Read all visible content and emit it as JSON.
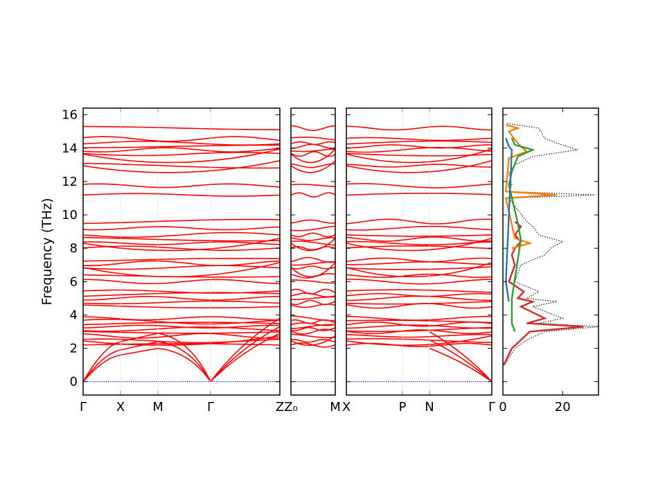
{
  "chart_data": [
    {
      "type": "line",
      "panel": "band-structure-1",
      "ylabel": "Frequency (THz)",
      "ylim": [
        -0.8,
        16.4
      ],
      "yticks": [
        "0",
        "2",
        "4",
        "6",
        "8",
        "10",
        "12",
        "14",
        "16"
      ],
      "xticks": [
        "Γ",
        "X",
        "M",
        "Γ",
        "Z"
      ],
      "series_color": "#ff0000",
      "zero_line_color": "#0000cc",
      "flat_bands": [
        2.2,
        2.45,
        2.75,
        3.0,
        3.15,
        3.3,
        3.45,
        3.6,
        3.8,
        4.55,
        4.75,
        5.0,
        5.2,
        5.4,
        6.0,
        6.35,
        6.85,
        7.1,
        7.3,
        8.0,
        8.3,
        8.55,
        8.8,
        9.2,
        9.6,
        11.2,
        11.75,
        12.95,
        13.65,
        13.9,
        14.1,
        14.3,
        14.55,
        15.2
      ],
      "acoustic": [
        {
          "name": "",
          "x": [
            "Γ",
            "X",
            "M",
            "Γ"
          ],
          "y": [
            0,
            1.9,
            2.4,
            0
          ]
        },
        {
          "name": "",
          "x": [
            "Γ",
            "X",
            "M",
            "Γ"
          ],
          "y": [
            0,
            1.6,
            2.0,
            0
          ]
        },
        {
          "name": "",
          "x": [
            "Γ",
            "X",
            "M",
            "Γ"
          ],
          "y": [
            0,
            2.4,
            2.9,
            0
          ]
        }
      ]
    },
    {
      "type": "line",
      "panel": "band-structure-2",
      "xticks": [
        "Z₀",
        "M"
      ],
      "series_color": "#ff0000"
    },
    {
      "type": "line",
      "panel": "band-structure-3",
      "xticks": [
        "X",
        "P",
        "N",
        "Γ"
      ],
      "series_color": "#ff0000"
    },
    {
      "type": "line",
      "panel": "dos",
      "xticks": [
        "0",
        "20"
      ],
      "xlim": [
        0,
        32
      ],
      "series": [
        {
          "name": "",
          "color": "#000000",
          "style": "dotted",
          "y": [
            1.0,
            2.0,
            2.5,
            3.0,
            3.3,
            3.5,
            3.8,
            4.5,
            4.8,
            5.0,
            5.4,
            6.0,
            7.0,
            7.6,
            8.0,
            8.4,
            8.8,
            9.3,
            9.6,
            11.0,
            11.2,
            11.4,
            11.8,
            12.5,
            13.0,
            13.5,
            13.9,
            14.3,
            14.6,
            15.2,
            15.5
          ],
          "x": [
            0.5,
            4,
            8,
            14,
            32,
            12,
            20,
            10,
            18,
            8,
            12,
            4,
            6,
            14,
            16,
            20,
            12,
            10,
            8,
            2,
            31,
            2,
            3,
            2,
            4,
            10,
            25,
            18,
            14,
            12,
            1
          ]
        },
        {
          "name": "",
          "color": "#d62728",
          "y": [
            1.0,
            2.0,
            2.5,
            3.0,
            3.3,
            3.5,
            3.8,
            4.5,
            4.8,
            5.0,
            5.4,
            6.0,
            7.0,
            7.6,
            8.0,
            8.4,
            8.8,
            9.3,
            9.6
          ],
          "x": [
            0.3,
            3,
            6,
            9,
            27,
            8,
            14,
            6,
            10,
            5,
            7,
            2,
            4,
            3,
            4,
            6,
            4,
            6,
            4
          ]
        },
        {
          "name": "",
          "color": "#ff7f0e",
          "y": [
            8.0,
            8.3,
            8.6,
            11.0,
            11.2,
            11.4,
            13.4,
            13.8,
            14.1,
            14.5,
            15.0,
            15.2,
            15.4
          ],
          "x": [
            3,
            9,
            4,
            1,
            18,
            1,
            2,
            8,
            6,
            4,
            2,
            5,
            1
          ]
        },
        {
          "name": "",
          "color": "#2ca02c",
          "y": [
            3.0,
            3.5,
            5.0,
            8.5,
            9.5,
            11.8,
            12.6,
            13.5,
            13.9,
            14.2,
            14.6
          ],
          "x": [
            4,
            3,
            3,
            6,
            5,
            2,
            3,
            5,
            10,
            4,
            3
          ]
        },
        {
          "name": "",
          "color": "#1f77b4",
          "y": [
            4.8,
            6.0,
            13.9,
            14.1,
            14.6
          ],
          "x": [
            2,
            1,
            3,
            2,
            1
          ]
        }
      ]
    }
  ]
}
